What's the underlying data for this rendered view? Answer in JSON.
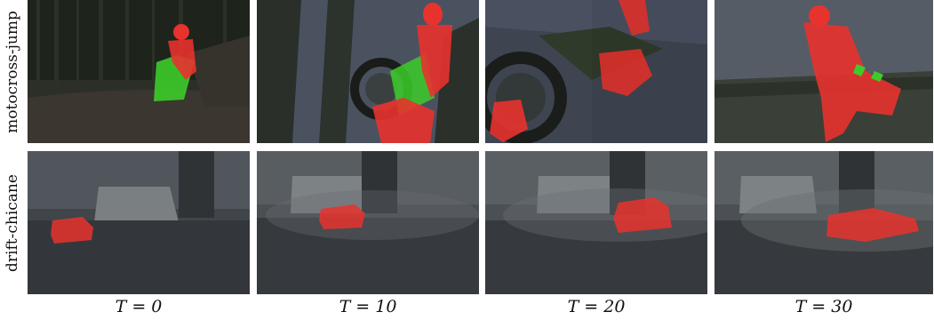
{
  "rows": [
    {
      "label": "motocross-jump"
    },
    {
      "label": "drift-chicane"
    }
  ],
  "columns": [
    {
      "label": "T = 0"
    },
    {
      "label": "T = 10"
    },
    {
      "label": "T = 20"
    },
    {
      "label": "T = 30"
    }
  ],
  "colors": {
    "mask_red": "#e8322d",
    "mask_green": "#3ccc2a",
    "background": "#ffffff"
  }
}
